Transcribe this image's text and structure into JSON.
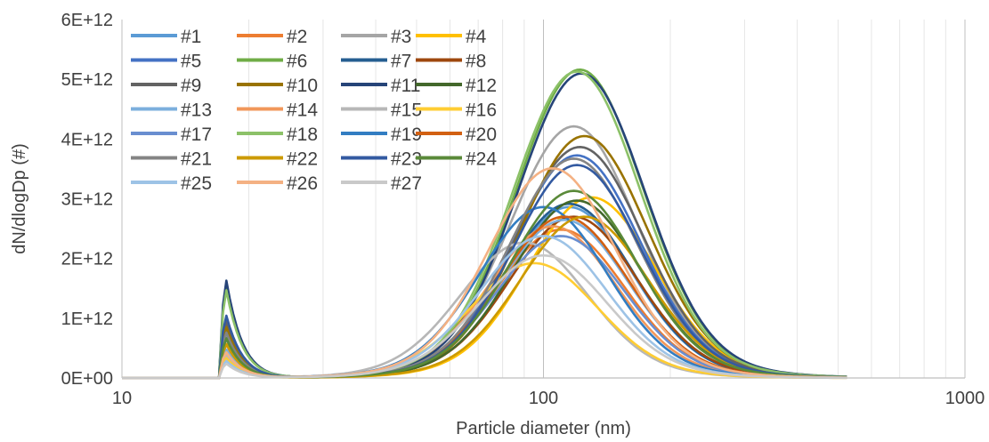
{
  "chart_data": {
    "type": "line",
    "title": "",
    "xlabel": "Particle diameter (nm)",
    "ylabel": "dN/dlogDp (#)",
    "xscale": "log",
    "xlim": [
      10,
      1000
    ],
    "ylim": [
      0,
      6000000000000
    ],
    "x_ticks": [
      "10",
      "100",
      "1000"
    ],
    "y_ticks": [
      "0E+00",
      "1E+12",
      "2E+12",
      "3E+12",
      "4E+12",
      "5E+12",
      "6E+12"
    ],
    "grid": "vertical minor and major gridlines",
    "legend_position": "top-left",
    "series": [
      {
        "name": "#1",
        "color": "#5b9bd5",
        "peak_x": 115,
        "peak_y": 2650000000000,
        "spike": 500000000000
      },
      {
        "name": "#2",
        "color": "#ed7d31",
        "peak_x": 110,
        "peak_y": 2300000000000,
        "spike": 600000000000
      },
      {
        "name": "#3",
        "color": "#a5a5a5",
        "peak_x": 118,
        "peak_y": 3900000000000,
        "spike": 800000000000
      },
      {
        "name": "#4",
        "color": "#ffc000",
        "peak_x": 130,
        "peak_y": 2800000000000,
        "spike": 400000000000
      },
      {
        "name": "#5",
        "color": "#4472c4",
        "peak_x": 120,
        "peak_y": 3450000000000,
        "spike": 900000000000
      },
      {
        "name": "#6",
        "color": "#70ad47",
        "peak_x": 122,
        "peak_y": 4780000000000,
        "spike": 1600000000000
      },
      {
        "name": "#7",
        "color": "#255e91",
        "peak_x": 115,
        "peak_y": 2700000000000,
        "spike": 700000000000
      },
      {
        "name": "#8",
        "color": "#9e480e",
        "peak_x": 118,
        "peak_y": 2500000000000,
        "spike": 600000000000
      },
      {
        "name": "#9",
        "color": "#636363",
        "peak_x": 122,
        "peak_y": 3580000000000,
        "spike": 1000000000000
      },
      {
        "name": "#10",
        "color": "#997300",
        "peak_x": 125,
        "peak_y": 3750000000000,
        "spike": 900000000000
      },
      {
        "name": "#11",
        "color": "#264478",
        "peak_x": 123,
        "peak_y": 4720000000000,
        "spike": 1720000000000
      },
      {
        "name": "#12",
        "color": "#43682b",
        "peak_x": 120,
        "peak_y": 2750000000000,
        "spike": 700000000000
      },
      {
        "name": "#13",
        "color": "#7cafdd",
        "peak_x": 112,
        "peak_y": 2450000000000,
        "spike": 500000000000
      },
      {
        "name": "#14",
        "color": "#f1975a",
        "peak_x": 105,
        "peak_y": 2350000000000,
        "spike": 600000000000
      },
      {
        "name": "#15",
        "color": "#b7b7b7",
        "peak_x": 90,
        "peak_y": 2100000000000,
        "spike": 400000000000
      },
      {
        "name": "#16",
        "color": "#ffcd33",
        "peak_x": 95,
        "peak_y": 1780000000000,
        "spike": 350000000000
      },
      {
        "name": "#17",
        "color": "#698ed0",
        "peak_x": 110,
        "peak_y": 2200000000000,
        "spike": 700000000000
      },
      {
        "name": "#18",
        "color": "#8cc168",
        "peak_x": 120,
        "peak_y": 4750000000000,
        "spike": 1550000000000
      },
      {
        "name": "#19",
        "color": "#327dc2",
        "peak_x": 100,
        "peak_y": 2650000000000,
        "spike": 800000000000
      },
      {
        "name": "#20",
        "color": "#d26012",
        "peak_x": 112,
        "peak_y": 2500000000000,
        "spike": 600000000000
      },
      {
        "name": "#21",
        "color": "#848484",
        "peak_x": 118,
        "peak_y": 3400000000000,
        "spike": 800000000000
      },
      {
        "name": "#22",
        "color": "#cc9a00",
        "peak_x": 125,
        "peak_y": 2500000000000,
        "spike": 600000000000
      },
      {
        "name": "#23",
        "color": "#335aa1",
        "peak_x": 120,
        "peak_y": 3300000000000,
        "spike": 1100000000000
      },
      {
        "name": "#24",
        "color": "#5a8a39",
        "peak_x": 118,
        "peak_y": 2900000000000,
        "spike": 700000000000
      },
      {
        "name": "#25",
        "color": "#9dc3e6",
        "peak_x": 100,
        "peak_y": 2200000000000,
        "spike": 300000000000
      },
      {
        "name": "#26",
        "color": "#f4b183",
        "peak_x": 105,
        "peak_y": 3250000000000,
        "spike": 450000000000
      },
      {
        "name": "#27",
        "color": "#c9c9c9",
        "peak_x": 100,
        "peak_y": 1900000000000,
        "spike": 250000000000
      }
    ]
  }
}
